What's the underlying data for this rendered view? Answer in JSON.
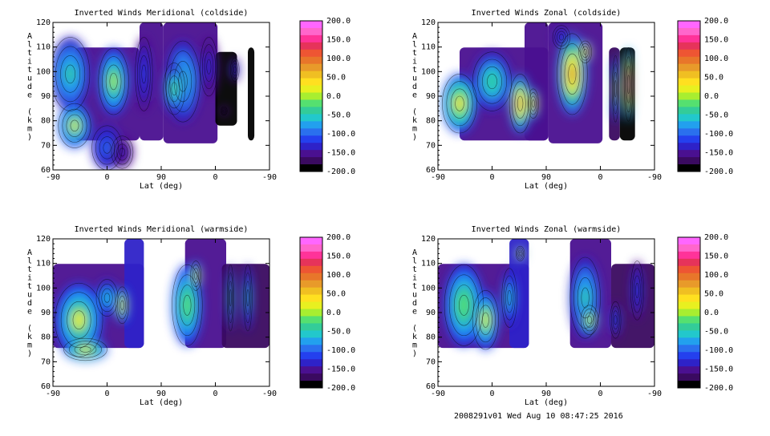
{
  "footer": "2008291v01 Wed Aug 10 08:47:25 2016",
  "colorbar": {
    "labels": [
      "200.0",
      "150.0",
      "100.0",
      "50.0",
      "0.0",
      "-50.0",
      "-100.0",
      "-150.0",
      "-200.0"
    ],
    "colors": [
      "#ff66ff",
      "#ff66cc",
      "#ff3399",
      "#e6335a",
      "#ee5533",
      "#e8762a",
      "#e89a2a",
      "#f0bf22",
      "#ffe020",
      "#e8f020",
      "#a8ee30",
      "#55e070",
      "#33cc99",
      "#22c8cc",
      "#22a0ee",
      "#2a70ee",
      "#2440ee",
      "#2e22c8",
      "#4a1090",
      "#3a0a60",
      "#000000"
    ]
  },
  "chart_data": [
    {
      "type": "heatmap",
      "title": "Inverted Winds Meridional (coldside)",
      "xlabel": "Lat (deg)",
      "ylabel": "Altitude (km)",
      "xticks": [
        "-90",
        "0",
        "90",
        "0",
        "-90"
      ],
      "yticks": [
        "60",
        "70",
        "80",
        "90",
        "100",
        "110",
        "120"
      ],
      "ylim": [
        60,
        120
      ],
      "zlim": [
        -200,
        200
      ],
      "blobs": [
        {
          "x": 0.08,
          "y": 0.35,
          "w": 0.18,
          "h": 0.5,
          "v": -40
        },
        {
          "x": 0.1,
          "y": 0.7,
          "w": 0.15,
          "h": 0.3,
          "v": 10
        },
        {
          "x": 0.28,
          "y": 0.4,
          "w": 0.14,
          "h": 0.45,
          "v": 5
        },
        {
          "x": 0.25,
          "y": 0.85,
          "w": 0.14,
          "h": 0.3,
          "v": -90
        },
        {
          "x": 0.42,
          "y": 0.35,
          "w": 0.08,
          "h": 0.5,
          "v": -120
        },
        {
          "x": 0.32,
          "y": 0.88,
          "w": 0.1,
          "h": 0.22,
          "v": -140
        },
        {
          "x": 0.6,
          "y": 0.4,
          "w": 0.16,
          "h": 0.55,
          "v": -40
        },
        {
          "x": 0.56,
          "y": 0.45,
          "w": 0.1,
          "h": 0.35,
          "v": -20
        },
        {
          "x": 0.72,
          "y": 0.3,
          "w": 0.08,
          "h": 0.4,
          "v": -130
        },
        {
          "x": 0.84,
          "y": 0.32,
          "w": 0.04,
          "h": 0.16,
          "v": -120
        },
        {
          "x": 0.79,
          "y": 0.6,
          "w": 0.03,
          "h": 0.06,
          "v": -140
        }
      ],
      "regions": [
        {
          "x0": 0.1,
          "x1": 0.4,
          "y0": 0.17,
          "y1": 0.8,
          "v": -160
        },
        {
          "x0": 0.4,
          "x1": 0.51,
          "y0": 0.0,
          "y1": 0.8,
          "v": -160
        },
        {
          "x0": 0.51,
          "x1": 0.76,
          "y0": 0.0,
          "y1": 0.82,
          "v": -160
        },
        {
          "x0": 0.75,
          "x1": 0.85,
          "y0": 0.2,
          "y1": 0.7,
          "v": -190
        },
        {
          "x0": 0.9,
          "x1": 0.93,
          "y0": 0.17,
          "y1": 0.8,
          "v": -200
        }
      ]
    },
    {
      "type": "heatmap",
      "title": "Inverted Winds Zonal (coldside)",
      "xlabel": "Lat (deg)",
      "ylabel": "Altitude (km)",
      "xticks": [
        "-90",
        "0",
        "90",
        "0",
        "-90"
      ],
      "yticks": [
        "60",
        "70",
        "80",
        "90",
        "100",
        "110",
        "120"
      ],
      "ylim": [
        60,
        120
      ],
      "zlim": [
        -200,
        200
      ],
      "blobs": [
        {
          "x": 0.1,
          "y": 0.55,
          "w": 0.16,
          "h": 0.4,
          "v": 40
        },
        {
          "x": 0.25,
          "y": 0.4,
          "w": 0.18,
          "h": 0.4,
          "v": -30
        },
        {
          "x": 0.38,
          "y": 0.55,
          "w": 0.1,
          "h": 0.4,
          "v": 80
        },
        {
          "x": 0.44,
          "y": 0.55,
          "w": 0.05,
          "h": 0.2,
          "v": 140
        },
        {
          "x": 0.62,
          "y": 0.35,
          "w": 0.14,
          "h": 0.55,
          "v": 70
        },
        {
          "x": 0.68,
          "y": 0.2,
          "w": 0.06,
          "h": 0.15,
          "v": 110
        },
        {
          "x": 0.57,
          "y": 0.1,
          "w": 0.08,
          "h": 0.16,
          "v": -120
        },
        {
          "x": 0.82,
          "y": 0.45,
          "w": 0.03,
          "h": 0.45,
          "v": 20
        },
        {
          "x": 0.88,
          "y": 0.42,
          "w": 0.04,
          "h": 0.5,
          "v": 170
        }
      ],
      "regions": [
        {
          "x0": 0.1,
          "x1": 0.51,
          "y0": 0.17,
          "y1": 0.8,
          "v": -160
        },
        {
          "x0": 0.4,
          "x1": 0.51,
          "y0": 0.0,
          "y1": 0.8,
          "v": -150
        },
        {
          "x0": 0.51,
          "x1": 0.76,
          "y0": 0.0,
          "y1": 0.82,
          "v": -150
        },
        {
          "x0": 0.79,
          "x1": 0.84,
          "y0": 0.17,
          "y1": 0.8,
          "v": -180
        },
        {
          "x0": 0.84,
          "x1": 0.91,
          "y0": 0.17,
          "y1": 0.8,
          "v": -190
        }
      ]
    },
    {
      "type": "heatmap",
      "title": "Inverted Winds Meridional (warmside)",
      "xlabel": "Lat (deg)",
      "ylabel": "Altitude (km)",
      "xticks": [
        "-90",
        "0",
        "90",
        "0",
        "-90"
      ],
      "yticks": [
        "60",
        "70",
        "80",
        "90",
        "100",
        "110",
        "120"
      ],
      "ylim": [
        60,
        120
      ],
      "zlim": [
        -200,
        200
      ],
      "blobs": [
        {
          "x": 0.12,
          "y": 0.55,
          "w": 0.22,
          "h": 0.5,
          "v": 15
        },
        {
          "x": 0.15,
          "y": 0.75,
          "w": 0.2,
          "h": 0.15,
          "v": 40
        },
        {
          "x": 0.25,
          "y": 0.4,
          "w": 0.1,
          "h": 0.25,
          "v": -60
        },
        {
          "x": 0.32,
          "y": 0.45,
          "w": 0.06,
          "h": 0.25,
          "v": 50
        },
        {
          "x": 0.62,
          "y": 0.45,
          "w": 0.14,
          "h": 0.55,
          "v": -10
        },
        {
          "x": 0.66,
          "y": 0.25,
          "w": 0.05,
          "h": 0.2,
          "v": 60
        },
        {
          "x": 0.82,
          "y": 0.4,
          "w": 0.03,
          "h": 0.45,
          "v": -40
        },
        {
          "x": 0.9,
          "y": 0.4,
          "w": 0.04,
          "h": 0.45,
          "v": -60
        }
      ],
      "regions": [
        {
          "x0": 0.0,
          "x1": 0.42,
          "y0": 0.17,
          "y1": 0.74,
          "v": -160
        },
        {
          "x0": 0.33,
          "x1": 0.42,
          "y0": 0.0,
          "y1": 0.74,
          "v": -140
        },
        {
          "x0": 0.61,
          "x1": 0.8,
          "y0": 0.0,
          "y1": 0.74,
          "v": -150
        },
        {
          "x0": 0.78,
          "x1": 1.0,
          "y0": 0.17,
          "y1": 0.74,
          "v": -180
        }
      ]
    },
    {
      "type": "heatmap",
      "title": "Inverted Winds Zonal (warmside)",
      "xlabel": "Lat (deg)",
      "ylabel": "Altitude (km)",
      "xticks": [
        "-90",
        "0",
        "90",
        "0",
        "-90"
      ],
      "yticks": [
        "60",
        "70",
        "80",
        "90",
        "100",
        "110",
        "120"
      ],
      "ylim": [
        60,
        120
      ],
      "zlim": [
        -200,
        200
      ],
      "blobs": [
        {
          "x": 0.12,
          "y": 0.45,
          "w": 0.18,
          "h": 0.55,
          "v": -10
        },
        {
          "x": 0.22,
          "y": 0.55,
          "w": 0.12,
          "h": 0.4,
          "v": 20
        },
        {
          "x": 0.33,
          "y": 0.4,
          "w": 0.07,
          "h": 0.4,
          "v": -50
        },
        {
          "x": 0.38,
          "y": 0.1,
          "w": 0.04,
          "h": 0.1,
          "v": 90
        },
        {
          "x": 0.68,
          "y": 0.4,
          "w": 0.14,
          "h": 0.55,
          "v": -40
        },
        {
          "x": 0.7,
          "y": 0.55,
          "w": 0.08,
          "h": 0.2,
          "v": 40
        },
        {
          "x": 0.82,
          "y": 0.55,
          "w": 0.05,
          "h": 0.25,
          "v": -110
        },
        {
          "x": 0.92,
          "y": 0.35,
          "w": 0.06,
          "h": 0.4,
          "v": -120
        }
      ],
      "regions": [
        {
          "x0": 0.0,
          "x1": 0.42,
          "y0": 0.17,
          "y1": 0.74,
          "v": -160
        },
        {
          "x0": 0.33,
          "x1": 0.42,
          "y0": 0.0,
          "y1": 0.74,
          "v": -140
        },
        {
          "x0": 0.61,
          "x1": 0.8,
          "y0": 0.0,
          "y1": 0.74,
          "v": -150
        },
        {
          "x0": 0.8,
          "x1": 1.0,
          "y0": 0.17,
          "y1": 0.74,
          "v": -180
        }
      ]
    }
  ]
}
